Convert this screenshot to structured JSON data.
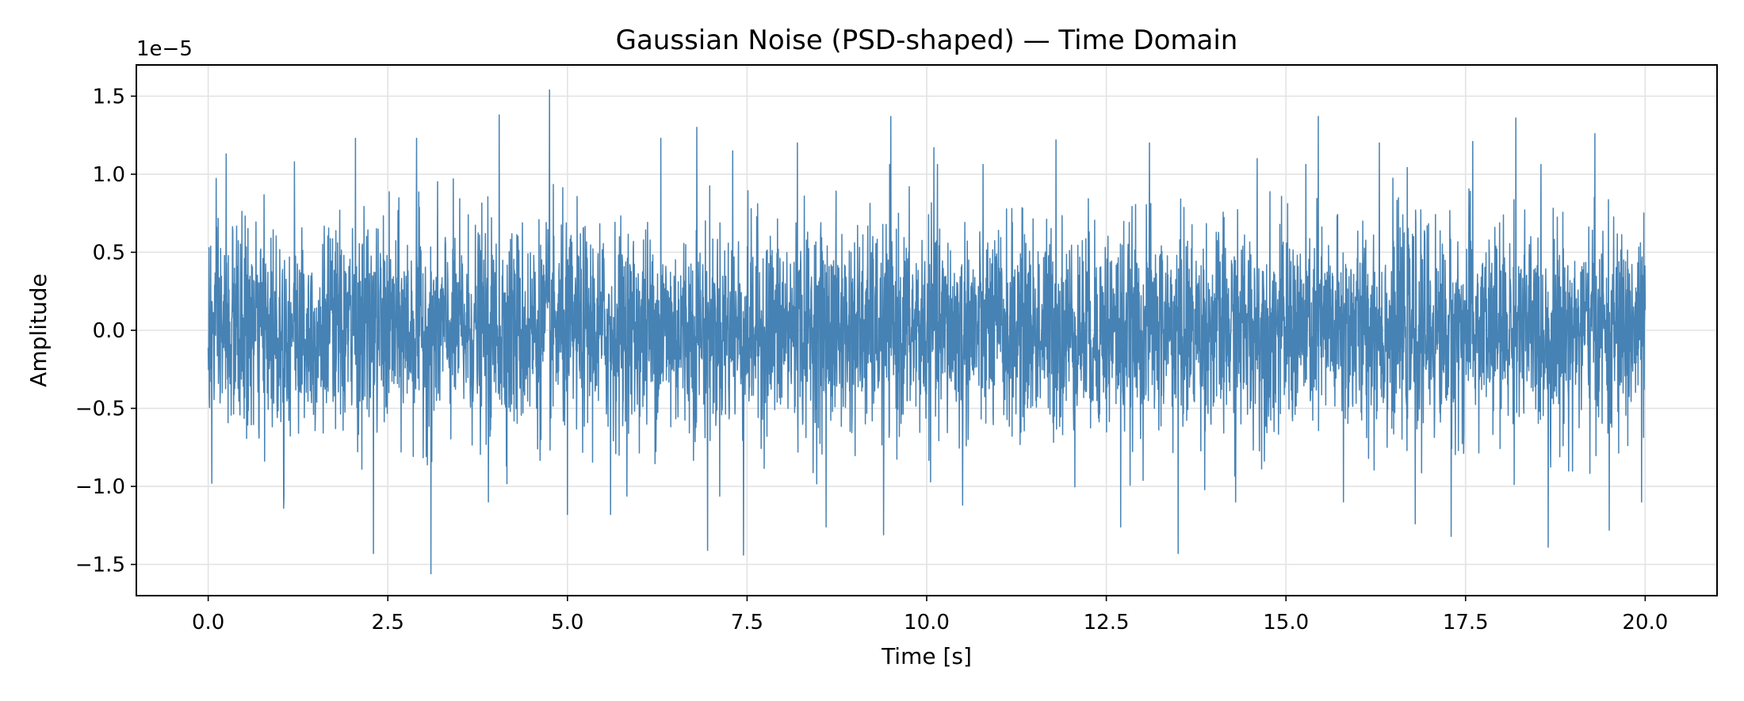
{
  "chart_data": {
    "type": "line",
    "title": "Gaussian Noise (PSD-shaped) — Time Domain",
    "xlabel": "Time [s]",
    "ylabel": "Amplitude",
    "y_offset_label": "1e−5",
    "y_scale_factor": 1e-05,
    "xlim": [
      -1.0,
      21.0
    ],
    "ylim": [
      -1.7,
      1.7
    ],
    "grid": true,
    "legend": "none",
    "line_color": "#4682b4",
    "x_ticks": [
      {
        "value": 0.0,
        "label": "0.0"
      },
      {
        "value": 2.5,
        "label": "2.5"
      },
      {
        "value": 5.0,
        "label": "5.0"
      },
      {
        "value": 7.5,
        "label": "7.5"
      },
      {
        "value": 10.0,
        "label": "10.0"
      },
      {
        "value": 12.5,
        "label": "12.5"
      },
      {
        "value": 15.0,
        "label": "15.0"
      },
      {
        "value": 17.5,
        "label": "17.5"
      },
      {
        "value": 20.0,
        "label": "20.0"
      }
    ],
    "y_ticks": [
      {
        "value": 1.5,
        "label": "1.5"
      },
      {
        "value": 1.0,
        "label": "1.0"
      },
      {
        "value": 0.5,
        "label": "0.5"
      },
      {
        "value": 0.0,
        "label": "0.0"
      },
      {
        "value": -0.5,
        "label": "−0.5"
      },
      {
        "value": -1.0,
        "label": "−1.0"
      },
      {
        "value": -1.5,
        "label": "−1.5"
      }
    ],
    "series": [
      {
        "x_start": 0.0,
        "x_end": 20.0,
        "typical_envelope": [
          -0.85,
          0.85
        ],
        "peaks": [
          {
            "x": 0.25,
            "y": 1.13
          },
          {
            "x": 0.05,
            "y": -0.98
          },
          {
            "x": 1.2,
            "y": 1.08
          },
          {
            "x": 1.05,
            "y": -1.14
          },
          {
            "x": 2.05,
            "y": 1.23
          },
          {
            "x": 2.3,
            "y": -1.43
          },
          {
            "x": 2.9,
            "y": 1.23
          },
          {
            "x": 3.1,
            "y": -1.56
          },
          {
            "x": 4.05,
            "y": 1.38
          },
          {
            "x": 3.9,
            "y": -1.1
          },
          {
            "x": 4.75,
            "y": 1.54
          },
          {
            "x": 5.0,
            "y": -1.18
          },
          {
            "x": 6.3,
            "y": 1.23
          },
          {
            "x": 5.6,
            "y": -1.18
          },
          {
            "x": 6.8,
            "y": 1.3
          },
          {
            "x": 6.95,
            "y": -1.41
          },
          {
            "x": 7.3,
            "y": 1.15
          },
          {
            "x": 7.45,
            "y": -1.44
          },
          {
            "x": 8.2,
            "y": 1.2
          },
          {
            "x": 8.6,
            "y": -1.26
          },
          {
            "x": 9.5,
            "y": 1.37
          },
          {
            "x": 9.4,
            "y": -1.31
          },
          {
            "x": 10.1,
            "y": 1.17
          },
          {
            "x": 10.5,
            "y": -1.12
          },
          {
            "x": 11.8,
            "y": 1.22
          },
          {
            "x": 12.7,
            "y": -1.26
          },
          {
            "x": 13.1,
            "y": 1.2
          },
          {
            "x": 13.5,
            "y": -1.43
          },
          {
            "x": 14.6,
            "y": 1.1
          },
          {
            "x": 14.3,
            "y": -1.1
          },
          {
            "x": 15.45,
            "y": 1.37
          },
          {
            "x": 15.8,
            "y": -1.1
          },
          {
            "x": 16.3,
            "y": 1.2
          },
          {
            "x": 16.8,
            "y": -1.24
          },
          {
            "x": 17.6,
            "y": 1.21
          },
          {
            "x": 17.3,
            "y": -1.32
          },
          {
            "x": 18.2,
            "y": 1.36
          },
          {
            "x": 18.65,
            "y": -1.39
          },
          {
            "x": 19.3,
            "y": 1.26
          },
          {
            "x": 19.5,
            "y": -1.28
          },
          {
            "x": 19.95,
            "y": 1.07
          },
          {
            "x": 19.95,
            "y": -1.1
          }
        ]
      }
    ]
  }
}
